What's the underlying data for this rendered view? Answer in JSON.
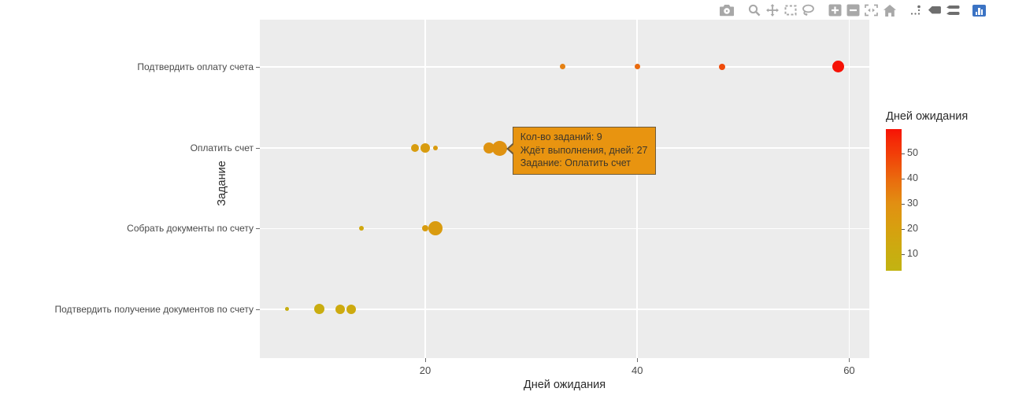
{
  "chart_data": {
    "type": "scatter",
    "title": "",
    "xlabel": "Дней ожидания",
    "ylabel": "Задание",
    "x_ticks": [
      20,
      40,
      60
    ],
    "x_range": [
      4.4,
      61.9
    ],
    "grid": true,
    "legend_position": "right-colorbar",
    "categories": [
      {
        "label": "Подтвердить оплату счета",
        "points": [
          {
            "x": 33,
            "d": 7,
            "color": "#e58113"
          },
          {
            "x": 40,
            "d": 7,
            "color": "#ea6a0e"
          },
          {
            "x": 48,
            "d": 8,
            "color": "#ef4b0a"
          },
          {
            "x": 59,
            "d": 15,
            "color": "#f61206"
          }
        ]
      },
      {
        "label": "Оплатить счет",
        "points": [
          {
            "x": 19,
            "d": 10,
            "color": "#d89d0f"
          },
          {
            "x": 20,
            "d": 12,
            "color": "#d89c0f"
          },
          {
            "x": 21,
            "d": 6,
            "color": "#d99b0f"
          },
          {
            "x": 26,
            "d": 14,
            "color": "#de9311"
          },
          {
            "x": 27,
            "d": 19,
            "color": "#df9211"
          }
        ]
      },
      {
        "label": "Собрать документы по счету",
        "points": [
          {
            "x": 14,
            "d": 6,
            "color": "#d0a80f"
          },
          {
            "x": 20,
            "d": 8,
            "color": "#d89c0f"
          },
          {
            "x": 21,
            "d": 18,
            "color": "#d99b0f"
          }
        ]
      },
      {
        "label": "Подтвердить получение документов по счету",
        "points": [
          {
            "x": 7,
            "d": 5,
            "color": "#c6ae11"
          },
          {
            "x": 10,
            "d": 13,
            "color": "#c9ad10"
          },
          {
            "x": 12,
            "d": 12,
            "color": "#cdaa0f"
          },
          {
            "x": 13,
            "d": 12,
            "color": "#cdaa0f"
          }
        ]
      }
    ],
    "colorbar": {
      "title": "Дней ожидания",
      "ticks": [
        50,
        40,
        30,
        20,
        10
      ],
      "range": [
        3.3,
        59.6
      ],
      "gradient": [
        {
          "pct": 0,
          "color": "#f71206"
        },
        {
          "pct": 9,
          "color": "#f42c07"
        },
        {
          "pct": 17,
          "color": "#f23d08"
        },
        {
          "pct": 35,
          "color": "#ea6a0e"
        },
        {
          "pct": 53,
          "color": "#e19012"
        },
        {
          "pct": 70,
          "color": "#d7a00f"
        },
        {
          "pct": 88,
          "color": "#c9ad10"
        },
        {
          "pct": 100,
          "color": "#c2b312"
        }
      ]
    }
  },
  "tooltip": {
    "lines": [
      "Кол-во заданий: 9",
      "Ждёт выполнения, дней: 27",
      "Задание: Оплатить счет"
    ],
    "anchor_category_index": 1,
    "anchor_x": 27,
    "bg": "#e89410",
    "border": "#6f5b3a",
    "text_color": "#3e372b"
  },
  "modebar": {
    "groups": [
      [
        "camera"
      ],
      [
        "zoom",
        "pan",
        "box-select",
        "lasso"
      ],
      [
        "zoom-in",
        "zoom-out",
        "autoscale",
        "home"
      ],
      [
        "spike-lines",
        "hover-closest",
        "hover-compare"
      ],
      [
        "plotly-logo"
      ]
    ]
  },
  "colors": {
    "plot_background": "#ececec",
    "gridline": "#ffffff",
    "modebar_inactive": "#a8a8a8",
    "modebar_active": "#6e6e6e",
    "plotly_logo_blue": "#3b73c4",
    "axis_text": "#4a4a4a"
  }
}
